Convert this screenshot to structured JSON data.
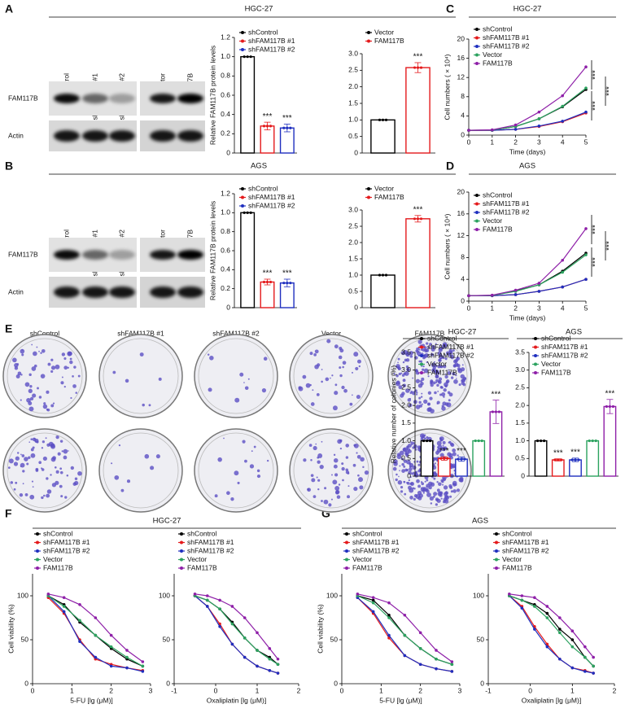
{
  "panels": [
    {
      "label": "A",
      "title": "HGC-27"
    },
    {
      "label": "B",
      "title": "AGS"
    },
    {
      "label": "C"
    },
    {
      "label": "D"
    },
    {
      "label": "E"
    },
    {
      "label": "F",
      "title": "HGC-27"
    },
    {
      "label": "G",
      "title": "AGS"
    }
  ],
  "blots": [
    {
      "lanes": [
        "shControl",
        "shFAM117B #1",
        "shFAM117B #2",
        "Vector",
        "FAM117B"
      ],
      "rows": [
        "FAM117B",
        "Actin"
      ]
    },
    {
      "lanes": [
        "shControl",
        "shFAM117B #1",
        "shFAM117B #2",
        "Vector",
        "FAM117B"
      ],
      "rows": [
        "FAM117B",
        "Actin"
      ]
    }
  ],
  "colonies": {
    "columns": [
      "shControl",
      "shFAM117B #1",
      "shFAM117B #2",
      "Vector",
      "FAM117B"
    ],
    "rows": [
      "HGC-27",
      "AGS"
    ]
  },
  "chart_data": [
    {
      "type": "bar",
      "y_label": "Relative FAM117B protein levels",
      "categories": [
        "shControl",
        "shFAM117B #1",
        "shFAM117B #2"
      ],
      "values": [
        1,
        0.28,
        0.26
      ],
      "errors": [
        0,
        0.04,
        0.04
      ],
      "colors": [
        "#000000",
        "#e41a1c",
        "#1f2fbf"
      ],
      "significance": [
        null,
        "***",
        "***"
      ],
      "ylim": [
        0,
        1.2
      ],
      "yticks": [
        0,
        0.2,
        0.4,
        0.6,
        0.8,
        {
          "value": 1,
          "label": "1.0"
        },
        1.2
      ]
    },
    {
      "type": "bar",
      "categories": [
        "Vector",
        "FAM117B"
      ],
      "values": [
        1,
        2.58
      ],
      "errors": [
        0,
        0.15
      ],
      "colors": [
        "#000000",
        "#e41a1c"
      ],
      "significance": [
        null,
        "***"
      ],
      "ylim": [
        0,
        3
      ],
      "yticks": [
        0,
        0.5,
        {
          "value": 1,
          "label": "1.0"
        },
        1.5,
        {
          "value": 2,
          "label": "2.0"
        },
        2.5,
        {
          "value": 3,
          "label": "3.0"
        }
      ]
    },
    {
      "type": "line",
      "title": "HGC-27",
      "x_label": "Time (days)",
      "y_label": "Cell numbers ( × 10⁴)",
      "x": [
        0,
        1,
        2,
        3,
        4,
        5
      ],
      "xlim": [
        0,
        5
      ],
      "xticks": [
        0,
        1,
        2,
        3,
        4,
        5
      ],
      "ylim": [
        0,
        20
      ],
      "yticks": [
        0,
        4,
        8,
        12,
        16,
        20
      ],
      "series": [
        {
          "name": "shControl",
          "color": "#000000",
          "values": [
            1,
            1.05,
            1.8,
            3.4,
            5.9,
            9.5
          ]
        },
        {
          "name": "shFAM117B #1",
          "color": "#e41a1c",
          "values": [
            1,
            1,
            1.2,
            1.8,
            2.8,
            4.6
          ]
        },
        {
          "name": "shFAM117B #2",
          "color": "#1f2fbf",
          "values": [
            1,
            1,
            1.2,
            1.9,
            2.9,
            4.8
          ]
        },
        {
          "name": "Vector",
          "color": "#2ca25f",
          "values": [
            1,
            1.05,
            1.8,
            3.4,
            6,
            9.8
          ]
        },
        {
          "name": "FAM117B",
          "color": "#8e1fa8",
          "values": [
            1,
            1.1,
            2.1,
            4.8,
            8.2,
            14.2
          ]
        }
      ],
      "annotations": [
        "***",
        "***",
        "***"
      ]
    },
    {
      "type": "bar",
      "y_label": "Relative FAM117B protein levels",
      "categories": [
        "shControl",
        "shFAM117B #1",
        "shFAM117B #2"
      ],
      "values": [
        1,
        0.27,
        0.26
      ],
      "errors": [
        0,
        0.03,
        0.04
      ],
      "colors": [
        "#000000",
        "#e41a1c",
        "#1f2fbf"
      ],
      "significance": [
        null,
        "***",
        "***"
      ],
      "ylim": [
        0,
        1.2
      ],
      "yticks": [
        0,
        0.2,
        0.4,
        0.6,
        0.8,
        {
          "value": 1,
          "label": "1.0"
        },
        1.2
      ]
    },
    {
      "type": "bar",
      "categories": [
        "Vector",
        "FAM117B"
      ],
      "values": [
        1,
        2.73
      ],
      "errors": [
        0,
        0.1
      ],
      "colors": [
        "#000000",
        "#e41a1c"
      ],
      "significance": [
        null,
        "***"
      ],
      "ylim": [
        0,
        3
      ],
      "yticks": [
        0,
        0.5,
        {
          "value": 1,
          "label": "1.0"
        },
        1.5,
        {
          "value": 2,
          "label": "2.0"
        },
        2.5,
        {
          "value": 3,
          "label": "3.0"
        }
      ]
    },
    {
      "type": "line",
      "title": "AGS",
      "x_label": "Time (days)",
      "y_label": "Cell numbers ( × 10⁴)",
      "x": [
        0,
        1,
        2,
        3,
        4,
        5
      ],
      "xlim": [
        0,
        5
      ],
      "xticks": [
        0,
        1,
        2,
        3,
        4,
        5
      ],
      "ylim": [
        0,
        20
      ],
      "yticks": [
        0,
        4,
        8,
        12,
        16,
        20
      ],
      "series": [
        {
          "name": "shControl",
          "color": "#000000",
          "values": [
            1,
            1.05,
            1.9,
            3,
            5.5,
            8.8
          ]
        },
        {
          "name": "shFAM117B #1",
          "color": "#e41a1c",
          "values": [
            1,
            1,
            1.2,
            1.8,
            2.6,
            4
          ]
        },
        {
          "name": "shFAM117B #2",
          "color": "#1f2fbf",
          "values": [
            1,
            1,
            1.2,
            1.8,
            2.6,
            4
          ]
        },
        {
          "name": "Vector",
          "color": "#2ca25f",
          "values": [
            1,
            1.05,
            1.8,
            3,
            5.3,
            8.5
          ]
        },
        {
          "name": "FAM117B",
          "color": "#8e1fa8",
          "values": [
            1,
            1.1,
            2,
            3.3,
            7.5,
            13.3
          ]
        }
      ],
      "annotations": [
        "***",
        "***",
        "***"
      ]
    },
    {
      "type": "bar",
      "title": "HGC-27",
      "y_label": "Relative number of colonies (%)",
      "categories": [
        "shControl",
        "shFAM117B #1",
        "shFAM117B #2",
        "Vector",
        "FAM117B"
      ],
      "values": [
        1,
        0.5,
        0.48,
        1,
        1.82
      ],
      "errors": [
        0,
        0.05,
        0.06,
        0,
        0.33
      ],
      "colors": [
        "#000000",
        "#e41a1c",
        "#1f2fbf",
        "#2ca25f",
        "#8e1fa8"
      ],
      "significance": [
        null,
        "***",
        "***",
        null,
        "***"
      ],
      "ylim": [
        0,
        3.5
      ],
      "yticks": [
        0,
        0.5,
        {
          "value": 1,
          "label": "1.0"
        },
        1.5,
        {
          "value": 2,
          "label": "2.0"
        },
        2.5,
        {
          "value": 3,
          "label": "3.0"
        },
        3.5
      ]
    },
    {
      "type": "bar",
      "title": "AGS",
      "categories": [
        "shControl",
        "shFAM117B #1",
        "shFAM117B #2",
        "Vector",
        "FAM117B"
      ],
      "values": [
        1,
        0.46,
        0.46,
        1,
        1.97
      ],
      "errors": [
        0,
        0.03,
        0.05,
        0,
        0.2
      ],
      "colors": [
        "#000000",
        "#e41a1c",
        "#1f2fbf",
        "#2ca25f",
        "#8e1fa8"
      ],
      "significance": [
        null,
        "***",
        "***",
        null,
        "***"
      ],
      "ylim": [
        0,
        3.5
      ],
      "yticks": [
        0,
        0.5,
        {
          "value": 1,
          "label": "1.0"
        },
        1.5,
        {
          "value": 2,
          "label": "2.0"
        },
        2.5,
        {
          "value": 3,
          "label": "3.0"
        },
        3.5
      ]
    },
    {
      "type": "line",
      "x_label": "5-FU [lg (μM)]",
      "y_label": "Cell viability (%)",
      "x": [
        0.4,
        0.8,
        1.2,
        1.6,
        2,
        2.4,
        2.8
      ],
      "xlim": [
        0,
        3
      ],
      "xticks": [
        0,
        1,
        2,
        3
      ],
      "ylim": [
        0,
        125
      ],
      "yticks": [
        0,
        50,
        100
      ],
      "series": [
        {
          "name": "shControl",
          "color": "#000000",
          "values": [
            100,
            90,
            70,
            55,
            40,
            28,
            20
          ]
        },
        {
          "name": "shFAM117B #1",
          "color": "#e41a1c",
          "values": [
            98,
            80,
            50,
            28,
            22,
            18,
            15
          ]
        },
        {
          "name": "shFAM117B #2",
          "color": "#1f2fbf",
          "values": [
            100,
            82,
            48,
            30,
            20,
            18,
            14
          ]
        },
        {
          "name": "Vector",
          "color": "#2ca25f",
          "values": [
            100,
            88,
            72,
            55,
            42,
            30,
            20
          ]
        },
        {
          "name": "FAM117B",
          "color": "#8e1fa8",
          "values": [
            102,
            98,
            90,
            75,
            55,
            38,
            25
          ]
        }
      ]
    },
    {
      "type": "line",
      "x_label": "Oxaliplatin [lg (μM)]",
      "x": [
        -0.5,
        -0.2,
        0.1,
        0.4,
        0.7,
        1,
        1.3,
        1.5
      ],
      "xlim": [
        -1,
        2
      ],
      "xticks": [
        -1,
        0,
        1,
        2
      ],
      "ylim": [
        0,
        125
      ],
      "yticks": [
        0,
        50,
        100
      ],
      "series": [
        {
          "name": "shControl",
          "color": "#000000",
          "values": [
            100,
            95,
            85,
            70,
            52,
            38,
            30,
            22
          ]
        },
        {
          "name": "shFAM117B #1",
          "color": "#e41a1c",
          "values": [
            100,
            88,
            68,
            45,
            30,
            20,
            15,
            12
          ]
        },
        {
          "name": "shFAM117B #2",
          "color": "#1f2fbf",
          "values": [
            100,
            88,
            65,
            45,
            30,
            20,
            15,
            12
          ]
        },
        {
          "name": "Vector",
          "color": "#2ca25f",
          "values": [
            100,
            95,
            85,
            68,
            52,
            38,
            28,
            22
          ]
        },
        {
          "name": "FAM117B",
          "color": "#8e1fa8",
          "values": [
            102,
            100,
            95,
            88,
            75,
            58,
            40,
            28
          ]
        }
      ]
    },
    {
      "type": "line",
      "x_label": "5-FU [lg (μM)]",
      "y_label": "Cell viability (%)",
      "x": [
        0.4,
        0.8,
        1.2,
        1.6,
        2,
        2.4,
        2.8
      ],
      "xlim": [
        0,
        3
      ],
      "xticks": [
        0,
        1,
        2,
        3
      ],
      "ylim": [
        0,
        125
      ],
      "yticks": [
        0,
        50,
        100
      ],
      "series": [
        {
          "name": "shControl",
          "color": "#000000",
          "values": [
            100,
            95,
            78,
            55,
            40,
            28,
            22
          ]
        },
        {
          "name": "shFAM117B #1",
          "color": "#e41a1c",
          "values": [
            98,
            80,
            52,
            32,
            22,
            17,
            14
          ]
        },
        {
          "name": "shFAM117B #2",
          "color": "#1f2fbf",
          "values": [
            98,
            82,
            55,
            32,
            22,
            17,
            14
          ]
        },
        {
          "name": "Vector",
          "color": "#2ca25f",
          "values": [
            100,
            92,
            75,
            55,
            40,
            28,
            22
          ]
        },
        {
          "name": "FAM117B",
          "color": "#8e1fa8",
          "values": [
            102,
            98,
            92,
            78,
            58,
            38,
            25
          ]
        }
      ]
    },
    {
      "type": "line",
      "x_label": "Oxaliplatin [lg (μM)]",
      "x": [
        -0.5,
        -0.2,
        0.1,
        0.4,
        0.7,
        1,
        1.3,
        1.5
      ],
      "xlim": [
        -1,
        2
      ],
      "xticks": [
        -1,
        0,
        1,
        2
      ],
      "ylim": [
        0,
        125
      ],
      "yticks": [
        0,
        50,
        100
      ],
      "series": [
        {
          "name": "shControl",
          "color": "#000000",
          "values": [
            100,
            95,
            90,
            80,
            62,
            50,
            30,
            20
          ]
        },
        {
          "name": "shFAM117B #1",
          "color": "#e41a1c",
          "values": [
            100,
            88,
            65,
            45,
            28,
            18,
            15,
            12
          ]
        },
        {
          "name": "shFAM117B #2",
          "color": "#1f2fbf",
          "values": [
            100,
            86,
            62,
            42,
            28,
            18,
            14,
            12
          ]
        },
        {
          "name": "Vector",
          "color": "#2ca25f",
          "values": [
            100,
            95,
            88,
            75,
            58,
            42,
            30,
            20
          ]
        },
        {
          "name": "FAM117B",
          "color": "#8e1fa8",
          "values": [
            102,
            100,
            98,
            88,
            75,
            60,
            42,
            30
          ]
        }
      ]
    }
  ]
}
